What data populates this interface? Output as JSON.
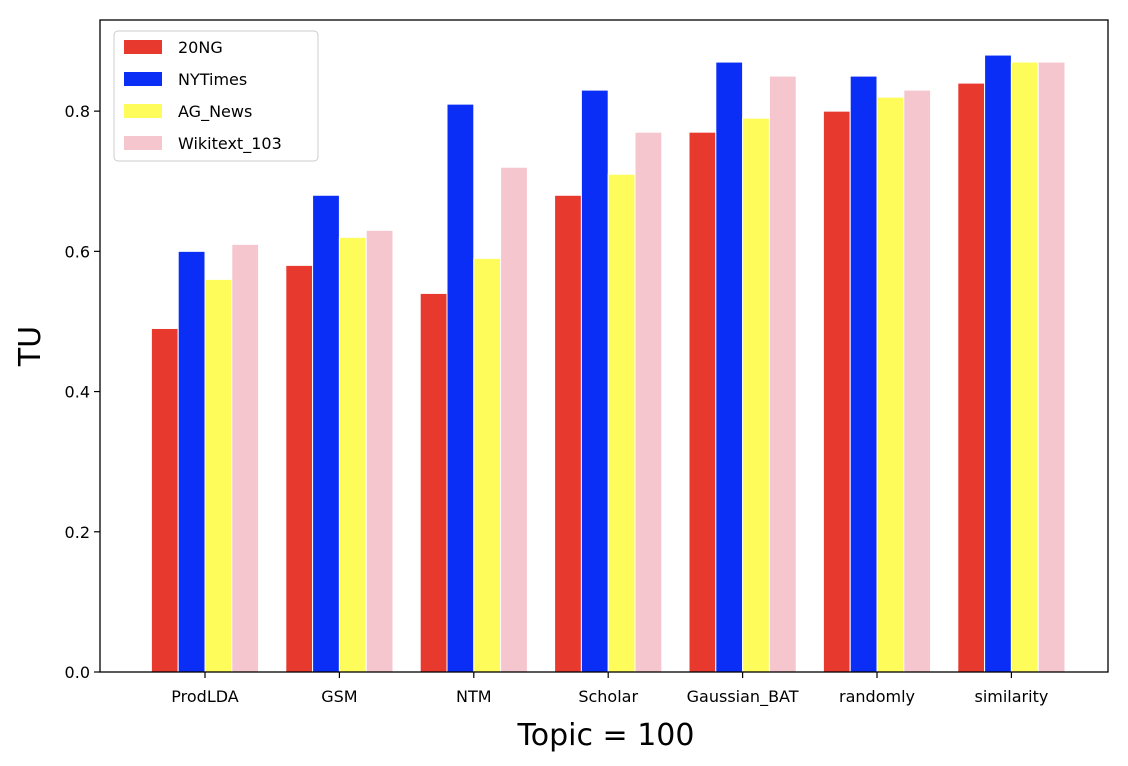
{
  "chart_data": {
    "type": "bar",
    "categories": [
      "ProdLDA",
      "GSM",
      "NTM",
      "Scholar",
      "Gaussian_BAT",
      "randomly",
      "similarity"
    ],
    "series": [
      {
        "name": "20NG",
        "color": "#e8392e",
        "values": [
          0.49,
          0.58,
          0.54,
          0.68,
          0.77,
          0.8,
          0.84
        ]
      },
      {
        "name": "NYTimes",
        "color": "#0a2ef5",
        "values": [
          0.6,
          0.68,
          0.81,
          0.83,
          0.87,
          0.85,
          0.88
        ]
      },
      {
        "name": "AG_News",
        "color": "#fdfc5a",
        "values": [
          0.56,
          0.62,
          0.59,
          0.71,
          0.79,
          0.82,
          0.87
        ]
      },
      {
        "name": "Wikitext_103",
        "color": "#f5c6cd",
        "values": [
          0.61,
          0.63,
          0.72,
          0.77,
          0.85,
          0.83,
          0.87
        ]
      }
    ],
    "title": "",
    "xlabel": "Topic = 100",
    "ylabel": "TU",
    "ylim": [
      0,
      0.93
    ],
    "yticks": [
      "0.0",
      "0.2",
      "0.4",
      "0.6",
      "0.8"
    ],
    "grid": false,
    "legend_position": "top-left"
  }
}
